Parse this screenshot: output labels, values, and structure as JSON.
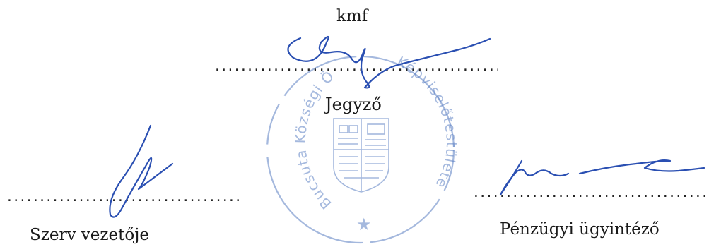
{
  "header": {
    "kmf": "kmf"
  },
  "signatures": {
    "notary": {
      "title": "Jegyző"
    },
    "head": {
      "title": "Szerv vezetője"
    },
    "finance": {
      "title": "Pénzügyi ügyintéző"
    }
  },
  "stamp": {
    "text_left": "Bucsuta Községi Ö",
    "text_right": "Képviselőtestülete",
    "color": "#5b7fc3"
  },
  "colors": {
    "ink": "#2a4fb2",
    "stamp": "#5b7fc3",
    "text": "#1a1a1a"
  }
}
